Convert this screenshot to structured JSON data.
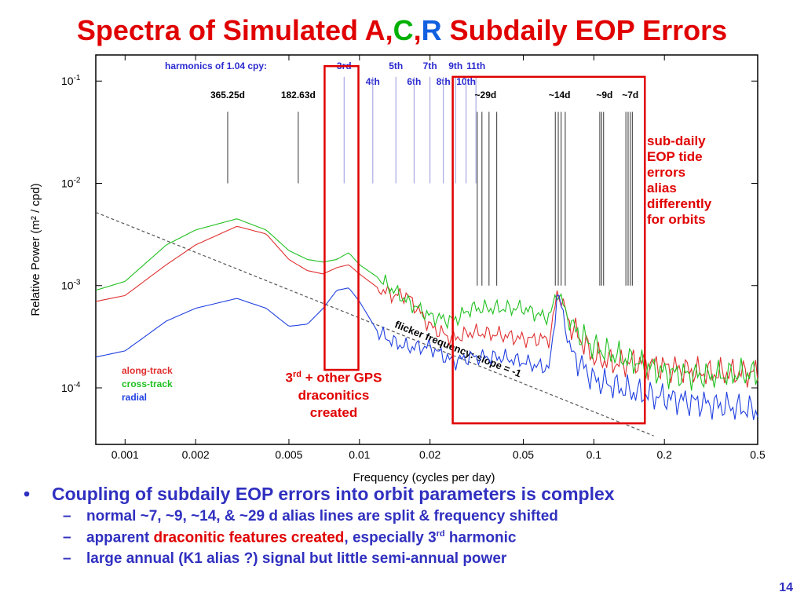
{
  "slide": {
    "title_part1": "Spectra of Simulated A,",
    "title_c": "C",
    "title_comma": ",",
    "title_r": "R",
    "title_part2": " Subdaily EOP Errors",
    "page_number": "14"
  },
  "annotations": {
    "right_lines": [
      "sub-daily",
      "EOP tide",
      "errors",
      "alias",
      "differently",
      "for orbits"
    ],
    "mid_line1_base": "3",
    "mid_line1_sup": "rd",
    "mid_line1_rest": " + other GPS",
    "mid_line2": "draconitics",
    "mid_line3": "created"
  },
  "bullets": {
    "main": "Coupling of subdaily EOP errors into orbit parameters is complex",
    "sub1": "normal ~7, ~9, ~14, & ~29 d alias lines are split & frequency shifted",
    "sub2_pre": "apparent ",
    "sub2_red": "draconitic features created",
    "sub2_post": ", especially 3",
    "sub2_sup": "rd",
    "sub2_end": " harmonic",
    "sub3": "large annual (K1 alias ?) signal but little semi-annual power"
  },
  "chart_data": {
    "type": "line",
    "xlabel": "Frequency (cycles per day)",
    "ylabel": "Relative Power (m² / cpd)",
    "x_scale": "log",
    "y_scale": "log",
    "xlim": [
      0.00075,
      0.5
    ],
    "ylim": [
      2.8e-05,
      0.18
    ],
    "x_ticks": [
      {
        "value": 0.001,
        "label": "0.001"
      },
      {
        "value": 0.002,
        "label": "0.002"
      },
      {
        "value": 0.005,
        "label": "0.005"
      },
      {
        "value": 0.01,
        "label": "0.01"
      },
      {
        "value": 0.02,
        "label": "0.02"
      },
      {
        "value": 0.05,
        "label": "0.05"
      },
      {
        "value": 0.1,
        "label": "0.1"
      },
      {
        "value": 0.2,
        "label": "0.2"
      },
      {
        "value": 0.5,
        "label": "0.5"
      }
    ],
    "y_ticks": [
      {
        "value": 0.1,
        "base": "10",
        "exp": "-1"
      },
      {
        "value": 0.01,
        "base": "10",
        "exp": "-2"
      },
      {
        "value": 0.001,
        "base": "10",
        "exp": "-3"
      },
      {
        "value": 0.0001,
        "base": "10",
        "exp": "-4"
      }
    ],
    "legend": {
      "position": "bottom-left",
      "entries": [
        "along-track",
        "cross-track",
        "radial"
      ]
    },
    "series": [
      {
        "name": "along-track",
        "color": "#e03030",
        "x": [
          0.00075,
          0.001,
          0.0015,
          0.002,
          0.003,
          0.004,
          0.005,
          0.006,
          0.007,
          0.008,
          0.009,
          0.01,
          0.012,
          0.014,
          0.016,
          0.02,
          0.025,
          0.03,
          0.04,
          0.05,
          0.06,
          0.065,
          0.07,
          0.08,
          0.1,
          0.13,
          0.15,
          0.2,
          0.3,
          0.5
        ],
        "y": [
          0.0007,
          0.0008,
          0.0016,
          0.0025,
          0.0038,
          0.0032,
          0.0018,
          0.0014,
          0.0013,
          0.0015,
          0.0016,
          0.0013,
          0.00095,
          0.0008,
          0.0008,
          0.0004,
          0.0003,
          0.00035,
          0.00033,
          0.0003,
          0.0003,
          0.0003,
          0.0009,
          0.0004,
          0.0002,
          0.00017,
          0.00018,
          0.00016,
          0.00014,
          0.00014
        ]
      },
      {
        "name": "cross-track",
        "color": "#20c020",
        "x": [
          0.00075,
          0.001,
          0.0015,
          0.002,
          0.003,
          0.004,
          0.005,
          0.006,
          0.007,
          0.008,
          0.009,
          0.01,
          0.012,
          0.014,
          0.016,
          0.02,
          0.025,
          0.03,
          0.04,
          0.05,
          0.06,
          0.065,
          0.07,
          0.08,
          0.1,
          0.13,
          0.15,
          0.2,
          0.3,
          0.5
        ],
        "y": [
          0.0009,
          0.0011,
          0.0025,
          0.0035,
          0.0045,
          0.0035,
          0.0022,
          0.0018,
          0.0017,
          0.0018,
          0.0021,
          0.0016,
          0.0012,
          0.0009,
          0.0007,
          0.0005,
          0.00045,
          0.0006,
          0.0006,
          0.0006,
          0.0005,
          0.0005,
          0.0009,
          0.0004,
          0.00025,
          0.0002,
          0.00018,
          0.00014,
          0.00013,
          0.00014
        ]
      },
      {
        "name": "radial",
        "color": "#2040e0",
        "x": [
          0.00075,
          0.001,
          0.0015,
          0.002,
          0.003,
          0.004,
          0.005,
          0.006,
          0.007,
          0.008,
          0.009,
          0.01,
          0.012,
          0.014,
          0.016,
          0.02,
          0.025,
          0.03,
          0.04,
          0.05,
          0.06,
          0.065,
          0.07,
          0.08,
          0.1,
          0.13,
          0.15,
          0.2,
          0.3,
          0.5
        ],
        "y": [
          0.0002,
          0.00023,
          0.00045,
          0.0006,
          0.00075,
          0.0006,
          0.0004,
          0.00042,
          0.0006,
          0.0009,
          0.00095,
          0.0007,
          0.00035,
          0.00028,
          0.00025,
          0.00025,
          0.00018,
          0.0002,
          0.0002,
          0.00018,
          0.00016,
          0.00016,
          0.0009,
          0.00022,
          0.00012,
          0.0001,
          9e-05,
          8e-05,
          7e-05,
          6e-05
        ]
      }
    ],
    "reference_line": {
      "label": "flicker frequency: slope = -1",
      "x": [
        0.00075,
        0.18
      ],
      "y": [
        0.0052,
        3.4e-05
      ],
      "color": "#555555",
      "style": "dashed"
    },
    "harmonics": {
      "header": "harmonics of 1.04 cpy:",
      "labels": [
        {
          "text": "3rd",
          "x": 0.0086,
          "row": 1
        },
        {
          "text": "5th",
          "x": 0.0143,
          "row": 1
        },
        {
          "text": "7th",
          "x": 0.02,
          "row": 1
        },
        {
          "text": "9th",
          "x": 0.0257,
          "row": 1
        },
        {
          "text": "11th",
          "x": 0.0314,
          "row": 1
        },
        {
          "text": "4th",
          "x": 0.0114,
          "row": 2
        },
        {
          "text": "6th",
          "x": 0.0171,
          "row": 2
        },
        {
          "text": "8th",
          "x": 0.0228,
          "row": 2
        },
        {
          "text": "10th",
          "x": 0.0285,
          "row": 2
        }
      ],
      "line_x": [
        0.0086,
        0.0114,
        0.0143,
        0.0171,
        0.02,
        0.0228,
        0.0257,
        0.0285,
        0.0314
      ],
      "line_ymin": 0.01,
      "line_ymax": 0.11
    },
    "period_markers": {
      "labels": [
        {
          "text": "365.25d",
          "x": 0.00274
        },
        {
          "text": "182.63d",
          "x": 0.00548
        },
        {
          "text": "~29d",
          "x": 0.0345
        },
        {
          "text": "~14d",
          "x": 0.0714
        },
        {
          "text": "~9d",
          "x": 0.111
        },
        {
          "text": "~7d",
          "x": 0.143
        }
      ],
      "lines": [
        {
          "x": 0.00274,
          "ymin": 0.01,
          "ymax": 0.05
        },
        {
          "x": 0.00548,
          "ymin": 0.01,
          "ymax": 0.05
        },
        {
          "x": 0.0318,
          "ymin": 0.001,
          "ymax": 0.05
        },
        {
          "x": 0.0333,
          "ymin": 0.001,
          "ymax": 0.05
        },
        {
          "x": 0.0357,
          "ymin": 0.001,
          "ymax": 0.05
        },
        {
          "x": 0.0385,
          "ymin": 0.001,
          "ymax": 0.05
        },
        {
          "x": 0.0685,
          "ymin": 0.001,
          "ymax": 0.05
        },
        {
          "x": 0.0705,
          "ymin": 0.001,
          "ymax": 0.05
        },
        {
          "x": 0.0725,
          "ymin": 0.001,
          "ymax": 0.05
        },
        {
          "x": 0.0755,
          "ymin": 0.001,
          "ymax": 0.05
        },
        {
          "x": 0.106,
          "ymin": 0.001,
          "ymax": 0.05
        },
        {
          "x": 0.108,
          "ymin": 0.001,
          "ymax": 0.05
        },
        {
          "x": 0.11,
          "ymin": 0.001,
          "ymax": 0.05
        },
        {
          "x": 0.137,
          "ymin": 0.001,
          "ymax": 0.05
        },
        {
          "x": 0.14,
          "ymin": 0.001,
          "ymax": 0.05
        },
        {
          "x": 0.143,
          "ymin": 0.001,
          "ymax": 0.05
        },
        {
          "x": 0.146,
          "ymin": 0.001,
          "ymax": 0.05
        }
      ]
    },
    "highlight_boxes": [
      {
        "name": "draconitic-box",
        "x": [
          0.0071,
          0.0099
        ],
        "y": [
          0.00015,
          0.14
        ],
        "color": "#e00000"
      },
      {
        "name": "subdaily-box",
        "x": [
          0.025,
          0.165
        ],
        "y": [
          4.5e-05,
          0.11
        ],
        "color": "#e00000"
      }
    ]
  }
}
